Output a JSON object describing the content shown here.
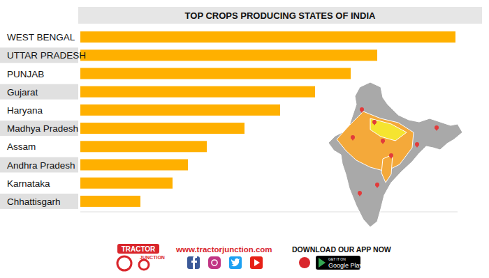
{
  "chart_data": {
    "type": "bar",
    "orientation": "horizontal",
    "title": "TOP CROPS PRODUCING STATES OF INDIA",
    "categories": [
      "WEST BENGAL",
      "UTTAR PRADESH",
      "PUNJAB",
      "Gujarat",
      "Haryana",
      "Madhya Pradesh",
      "Assam",
      "Andhra Pradesh",
      "Karnataka",
      "Chhattisgarh"
    ],
    "values": [
      537,
      425,
      387,
      336,
      286,
      235,
      181,
      154,
      132,
      86
    ],
    "color": "#FFB000",
    "xlim": [
      0,
      540
    ],
    "grid": false,
    "tick_labels": "y",
    "annotations": [
      "www.tractorjunction.com",
      "DOWNLOAD OUR APP NOW",
      "GET IT ON",
      "Google Play",
      "TRACTOR",
      "JUNCTION"
    ]
  }
}
